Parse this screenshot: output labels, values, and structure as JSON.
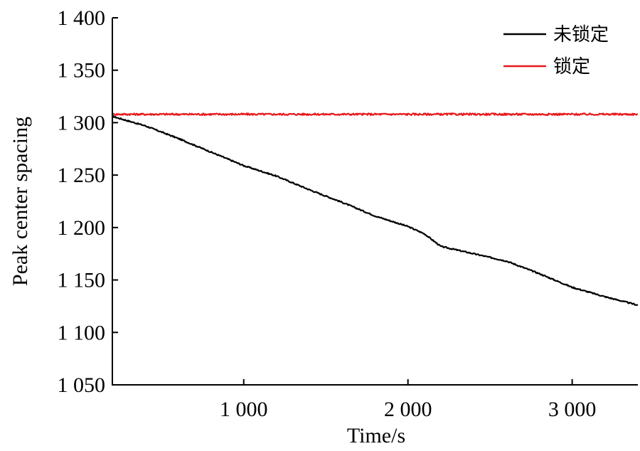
{
  "chart_data": {
    "type": "line",
    "title": "",
    "xlabel": "Time/s",
    "ylabel": "Peak center spacing",
    "xlim": [
      200,
      3400
    ],
    "ylim": [
      1050,
      1400
    ],
    "x_ticks": [
      1000,
      2000,
      3000
    ],
    "x_tick_labels": [
      "1 000",
      "2 000",
      "3 000"
    ],
    "y_ticks": [
      1050,
      1100,
      1150,
      1200,
      1250,
      1300,
      1350,
      1400
    ],
    "y_tick_labels": [
      "1 050",
      "1 100",
      "1 150",
      "1 200",
      "1 250",
      "1 300",
      "1 350",
      "1 400"
    ],
    "grid": false,
    "legend_position": "top-right",
    "series": [
      {
        "name": "未锁定",
        "color": "#000000",
        "x": [
          200,
          400,
          600,
          800,
          1000,
          1200,
          1400,
          1600,
          1800,
          2000,
          2100,
          2200,
          2400,
          2600,
          2800,
          3000,
          3200,
          3400
        ],
        "y": [
          1306,
          1297,
          1285,
          1272,
          1259,
          1249,
          1236,
          1224,
          1211,
          1201,
          1194,
          1182,
          1175,
          1168,
          1156,
          1143,
          1134,
          1126
        ]
      },
      {
        "name": "锁定",
        "color": "#e8191c",
        "x": [
          200,
          600,
          1000,
          1400,
          1800,
          2200,
          2600,
          3000,
          3400
        ],
        "y": [
          1308,
          1308,
          1308,
          1308,
          1308,
          1308,
          1308,
          1308,
          1308
        ]
      }
    ]
  }
}
